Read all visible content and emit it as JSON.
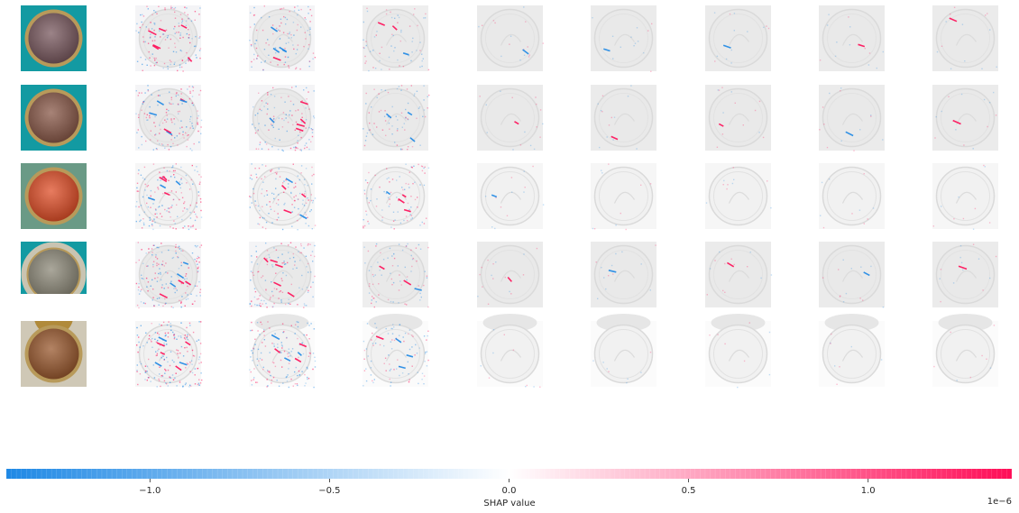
{
  "chart_data": {
    "type": "heatmap",
    "description_rows": 5,
    "description_cols": 9,
    "rows": [
      {
        "image": "coin-1-euro-on-teal",
        "coin_tint": "#7a5a60",
        "bg": "#139aa2",
        "shap_strength": [
          0,
          0.55,
          0.45,
          0.25,
          0.06,
          0.05,
          0.05,
          0.05,
          0.05
        ]
      },
      {
        "image": "coin-1-cent-on-teal",
        "coin_tint": "#8a5a4a",
        "bg": "#139aa2",
        "shap_strength": [
          0,
          0.55,
          0.45,
          0.3,
          0.06,
          0.05,
          0.05,
          0.05,
          0.05
        ]
      },
      {
        "image": "coin-red-on-green",
        "coin_tint": "#e0502a",
        "bg": "#6a9a86",
        "shap_strength": [
          0,
          0.6,
          0.5,
          0.35,
          0.05,
          0.04,
          0.04,
          0.04,
          0.04
        ]
      },
      {
        "image": "coin-2-euro-on-teal",
        "coin_tint": "#8e8a7a",
        "bg": "#139aa2",
        "shap_strength": [
          0,
          0.6,
          0.5,
          0.3,
          0.06,
          0.05,
          0.05,
          0.05,
          0.05
        ]
      },
      {
        "image": "coin-5-cent-on-beige",
        "coin_tint": "#9a5a30",
        "bg": "#cfc8b6",
        "shap_strength": [
          0,
          0.7,
          0.55,
          0.35,
          0.04,
          0.03,
          0.03,
          0.03,
          0.03
        ]
      }
    ],
    "colorbar": {
      "min": -1.4,
      "max": 1.4,
      "ticks": [
        -1.0,
        -0.5,
        0.0,
        0.5,
        1.0
      ],
      "tick_labels": [
        "−1.0",
        "−0.5",
        "0.0",
        "0.5",
        "1.0"
      ],
      "xlabel": "SHAP value",
      "offset_text": "1e−6",
      "color_negative": "#1e88e5",
      "color_positive": "#ff0d57"
    }
  }
}
